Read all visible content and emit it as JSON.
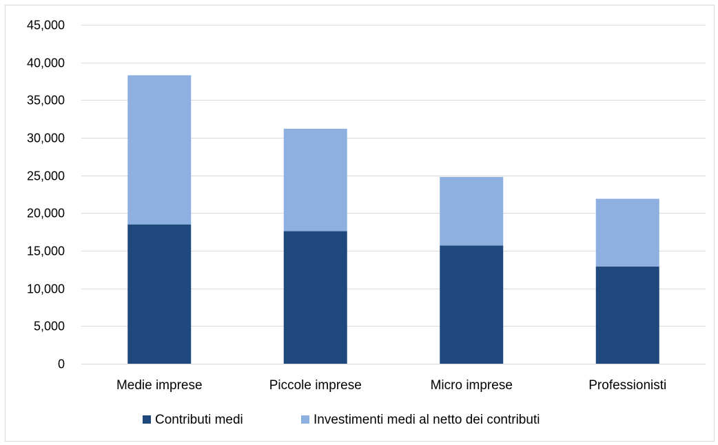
{
  "chart_data": {
    "type": "bar",
    "stacked": true,
    "categories": [
      "Medie imprese",
      "Piccole imprese",
      "Micro imprese",
      "Professionisti"
    ],
    "series": [
      {
        "name": "Contributi medi",
        "values": [
          18500,
          17600,
          15700,
          12900
        ],
        "color": "#1f497d"
      },
      {
        "name": "Investimenti medi al netto dei contributi",
        "values": [
          19800,
          13600,
          9100,
          9000
        ],
        "color": "#8eb0e0"
      }
    ],
    "ylim": [
      0,
      45000
    ],
    "yticks": [
      "0",
      "5,000",
      "10,000",
      "15,000",
      "20,000",
      "25,000",
      "30,000",
      "35,000",
      "40,000",
      "45,000"
    ],
    "ytick_values": [
      0,
      5000,
      10000,
      15000,
      20000,
      25000,
      30000,
      35000,
      40000,
      45000
    ],
    "grid": true,
    "gridline_color": "#d9d9d9",
    "legend_position": "bottom"
  }
}
